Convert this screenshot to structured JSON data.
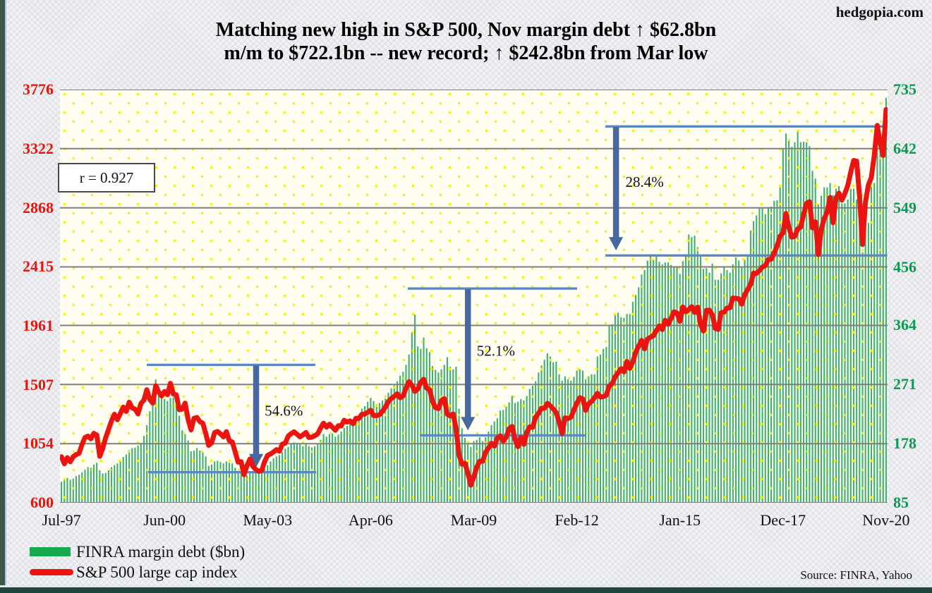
{
  "brand": "hedgopia.com",
  "title_line1": "Matching new high in S&P 500, Nov margin debt ↑ $62.8bn",
  "title_line2": "m/m to $722.1bn -- new record; ↑ $242.8bn from Mar low",
  "correlation_label": "r = 0.927",
  "source": "Source: FINRA, Yahoo",
  "legend": [
    {
      "label": "FINRA margin debt ($bn)",
      "color": "#17a94f",
      "type": "bar"
    },
    {
      "label": "S&P 500 large cap index",
      "color": "#ec1410",
      "type": "line"
    }
  ],
  "chart_data": {
    "type": "bar",
    "subtype": "dual-axis bar + line, monthly Jul-1997 to Nov-2020",
    "grid": true,
    "colors": {
      "bar": "#3fb070",
      "legend_bar": "#17a94f",
      "line": "#ec1410",
      "grid": "#7f7f7f",
      "annotation_line": "#5d87c3",
      "arrow": "#44689f",
      "dots": "#f1f104",
      "plot_bg": "#fffdf2",
      "left_axis_labels": "#e8150d",
      "right_axis_labels": "#089c50"
    },
    "x_ticks": [
      {
        "label": "Jul-97",
        "month": 0
      },
      {
        "label": "Jun-00",
        "month": 35
      },
      {
        "label": "May-03",
        "month": 70
      },
      {
        "label": "Apr-06",
        "month": 105
      },
      {
        "label": "Mar-09",
        "month": 140
      },
      {
        "label": "Feb-12",
        "month": 175
      },
      {
        "label": "Jan-15",
        "month": 210
      },
      {
        "label": "Dec-17",
        "month": 245
      },
      {
        "label": "Nov-20",
        "month": 280
      }
    ],
    "left_axis": {
      "series": "S&P 500 large cap index",
      "min": 600,
      "max": 3776,
      "ticks": [
        3776,
        3322,
        2868,
        2415,
        1961,
        1507,
        1054,
        600
      ]
    },
    "right_axis": {
      "series": "FINRA margin debt ($bn)",
      "min": 85,
      "max": 735,
      "ticks": [
        735,
        642,
        549,
        456,
        364,
        271,
        178,
        85
      ]
    },
    "series": [
      {
        "name": "FINRA margin debt ($bn)",
        "axis": "right",
        "type": "bar",
        "values": [
          118,
          121,
          124,
          121,
          123,
          127,
          129,
          133,
          137,
          141,
          140,
          145,
          148,
          136,
          131,
          132,
          136,
          141,
          144,
          147,
          151,
          157,
          161,
          168,
          171,
          172,
          175,
          179,
          190,
          207,
          229,
          252,
          279,
          269,
          251,
          248,
          245,
          250,
          251,
          238,
          222,
          199,
          193,
          183,
          166,
          167,
          171,
          167,
          164,
          158,
          143,
          145,
          150,
          151,
          149,
          147,
          150,
          148,
          147,
          140,
          134,
          134,
          130,
          128,
          133,
          134,
          133,
          132,
          133,
          138,
          144,
          150,
          155,
          158,
          160,
          165,
          170,
          173,
          178,
          180,
          179,
          177,
          174,
          177,
          174,
          172,
          174,
          177,
          184,
          193,
          189,
          193,
          194,
          189,
          192,
          197,
          203,
          206,
          211,
          208,
          216,
          221,
          233,
          237,
          244,
          250,
          245,
          240,
          242,
          246,
          249,
          258,
          265,
          270,
          276,
          285,
          291,
          302,
          318,
          353,
          381,
          331,
          327,
          345,
          328,
          322,
          300,
          294,
          290,
          295,
          302,
          314,
          299,
          295,
          299,
          233,
          202,
          187,
          177,
          173,
          182,
          184,
          188,
          182,
          188,
          197,
          207,
          213,
          218,
          230,
          231,
          236,
          243,
          253,
          242,
          244,
          248,
          246,
          253,
          264,
          269,
          276,
          290,
          301,
          310,
          320,
          315,
          306,
          307,
          287,
          277,
          284,
          279,
          277,
          283,
          293,
          295,
          293,
          279,
          284,
          287,
          287,
          315,
          318,
          327,
          330,
          364,
          366,
          380,
          384,
          377,
          376,
          382,
          382,
          401,
          412,
          424,
          444,
          451,
          466,
          476,
          467,
          472,
          464,
          460,
          463,
          463,
          459,
          457,
          456,
          445,
          465,
          476,
          507,
          503,
          505,
          487,
          473,
          453,
          454,
          447,
          461,
          436,
          436,
          446,
          455,
          451,
          447,
          460,
          471,
          466,
          457,
          467,
          473,
          513,
          528,
          537,
          549,
          549,
          539,
          550,
          551,
          560,
          561,
          581,
          643,
          666,
          654,
          645,
          652,
          669,
          652,
          653,
          652,
          646,
          607,
          595,
          554,
          568,
          581,
          581,
          588,
          569,
          579,
          583,
          556,
          556,
          562,
          579,
          579,
          562,
          545,
          479,
          525,
          525,
          584,
          588,
          645,
          654,
          659,
          722
        ]
      },
      {
        "name": "S&P 500 large cap index",
        "axis": "left",
        "type": "line",
        "values": [
          954,
          899,
          947,
          915,
          955,
          970,
          980,
          1049,
          1102,
          1112,
          1091,
          1134,
          1121,
          957,
          1017,
          1099,
          1164,
          1229,
          1280,
          1238,
          1286,
          1335,
          1302,
          1373,
          1329,
          1320,
          1283,
          1363,
          1389,
          1469,
          1394,
          1366,
          1499,
          1452,
          1421,
          1455,
          1431,
          1518,
          1436,
          1429,
          1315,
          1320,
          1366,
          1240,
          1160,
          1249,
          1256,
          1224,
          1211,
          1134,
          1041,
          1060,
          1139,
          1148,
          1130,
          1107,
          1147,
          1077,
          1067,
          990,
          912,
          916,
          815,
          886,
          936,
          880,
          856,
          841,
          848,
          917,
          964,
          975,
          990,
          1008,
          996,
          1051,
          1058,
          1112,
          1131,
          1145,
          1126,
          1107,
          1121,
          1141,
          1102,
          1104,
          1115,
          1130,
          1174,
          1212,
          1181,
          1204,
          1181,
          1157,
          1192,
          1191,
          1234,
          1220,
          1229,
          1207,
          1249,
          1248,
          1280,
          1281,
          1295,
          1311,
          1270,
          1270,
          1277,
          1304,
          1336,
          1378,
          1401,
          1418,
          1438,
          1407,
          1421,
          1482,
          1531,
          1503,
          1455,
          1474,
          1527,
          1549,
          1481,
          1468,
          1379,
          1331,
          1323,
          1386,
          1400,
          1280,
          1267,
          1283,
          1166,
          969,
          896,
          903,
          826,
          735,
          798,
          873,
          919,
          919,
          987,
          1021,
          1057,
          1036,
          1096,
          1115,
          1074,
          1104,
          1169,
          1187,
          1089,
          1031,
          1102,
          1049,
          1141,
          1183,
          1181,
          1258,
          1286,
          1327,
          1326,
          1364,
          1345,
          1321,
          1292,
          1219,
          1131,
          1253,
          1247,
          1258,
          1312,
          1366,
          1408,
          1398,
          1310,
          1362,
          1379,
          1407,
          1441,
          1412,
          1416,
          1426,
          1498,
          1515,
          1569,
          1598,
          1631,
          1606,
          1686,
          1633,
          1682,
          1757,
          1806,
          1848,
          1783,
          1859,
          1872,
          1884,
          1924,
          1960,
          1931,
          2003,
          1972,
          2018,
          2068,
          2059,
          1995,
          2105,
          2068,
          2086,
          2107,
          2063,
          2104,
          1972,
          1920,
          2079,
          2080,
          2044,
          1940,
          1932,
          2060,
          2065,
          2097,
          2099,
          2174,
          2171,
          2168,
          2126,
          2199,
          2239,
          2279,
          2364,
          2363,
          2384,
          2412,
          2423,
          2470,
          2472,
          2519,
          2575,
          2648,
          2674,
          2824,
          2714,
          2641,
          2648,
          2705,
          2718,
          2816,
          2902,
          2914,
          2712,
          2760,
          2507,
          2704,
          2785,
          2834,
          2946,
          2752,
          2942,
          2980,
          2926,
          2977,
          3038,
          3141,
          3231,
          3226,
          2954,
          2585,
          2912,
          3044,
          3100,
          3271,
          3500,
          3363,
          3270,
          3622
        ]
      }
    ],
    "annotations": [
      {
        "label": "54.6%",
        "top_level": 302,
        "bottom_level": 133,
        "top_from": 29.5,
        "top_to": 86.7,
        "bottom_from": 29.9,
        "bottom_to": 87.0,
        "arrow_at": 66.6,
        "label_at": 69.5,
        "label_level": 222
      },
      {
        "label": "52.1%",
        "top_level": 422,
        "bottom_level": 191,
        "top_from": 118.1,
        "top_to": 175.6,
        "bottom_from": 122.2,
        "bottom_to": 178.5,
        "arrow_at": 138.5,
        "label_at": 141.5,
        "label_level": 316
      },
      {
        "label": "28.4%",
        "top_level": 677,
        "bottom_level": 474,
        "top_from": 185.2,
        "top_to": 280.9,
        "bottom_from": 185.2,
        "bottom_to": 280.9,
        "arrow_at": 188.8,
        "label_at": 192.0,
        "label_level": 582
      }
    ]
  }
}
